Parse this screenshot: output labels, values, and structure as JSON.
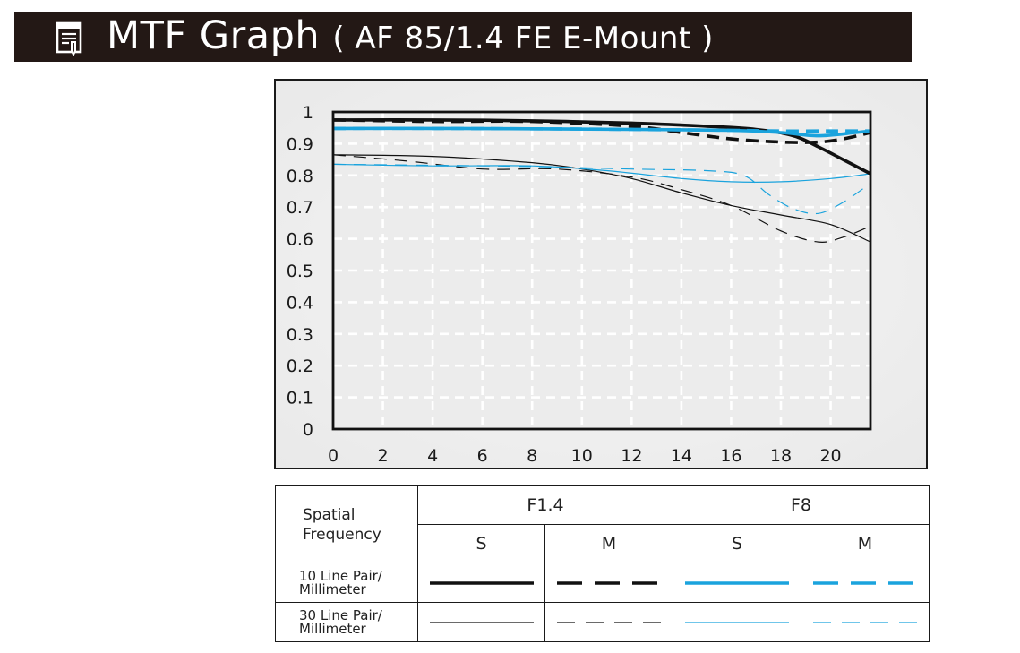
{
  "header": {
    "title": "MTF Graph",
    "subtitle": "( AF 85/1.4 FE E-Mount )",
    "icon": "document-pen-icon"
  },
  "chart_data": {
    "type": "line",
    "title": "",
    "xlabel": "",
    "ylabel": "",
    "xlim": [
      0,
      21.6
    ],
    "ylim": [
      0,
      1
    ],
    "x_ticks": [
      "0",
      "2",
      "4",
      "6",
      "8",
      "10",
      "12",
      "14",
      "16",
      "18",
      "20"
    ],
    "y_ticks": [
      "0",
      "0.1",
      "0.2",
      "0.3",
      "0.4",
      "0.5",
      "0.6",
      "0.7",
      "0.8",
      "0.9",
      "1"
    ],
    "grid": true,
    "series": [
      {
        "aperture": "F1.4",
        "orientation": "S",
        "frequency": "10 Line Pair/ Millimeter",
        "color": "#111111",
        "style": "solid",
        "weight": "thick",
        "x": [
          0,
          4,
          8,
          12,
          15,
          17,
          18.5,
          19.5,
          20.5,
          21.6
        ],
        "y": [
          0.975,
          0.975,
          0.972,
          0.965,
          0.955,
          0.945,
          0.925,
          0.89,
          0.85,
          0.805
        ]
      },
      {
        "aperture": "F1.4",
        "orientation": "M",
        "frequency": "10 Line Pair/ Millimeter",
        "color": "#111111",
        "style": "dashed",
        "weight": "thick",
        "x": [
          0,
          4,
          8,
          12,
          14,
          16,
          18,
          19.5,
          20.5,
          21.6
        ],
        "y": [
          0.975,
          0.97,
          0.97,
          0.955,
          0.935,
          0.915,
          0.905,
          0.905,
          0.915,
          0.935
        ]
      },
      {
        "aperture": "F8",
        "orientation": "S",
        "frequency": "10 Line Pair/ Millimeter",
        "color": "#1aa3dd",
        "style": "solid",
        "weight": "thick",
        "x": [
          0,
          4,
          8,
          12,
          16,
          18,
          19.5,
          21,
          21.6
        ],
        "y": [
          0.948,
          0.948,
          0.947,
          0.945,
          0.942,
          0.935,
          0.925,
          0.935,
          0.94
        ]
      },
      {
        "aperture": "F8",
        "orientation": "M",
        "frequency": "10 Line Pair/ Millimeter",
        "color": "#1aa3dd",
        "style": "dashed",
        "weight": "thick",
        "x": [
          0,
          4,
          8,
          12,
          16,
          18,
          20,
          21.6
        ],
        "y": [
          0.948,
          0.948,
          0.947,
          0.945,
          0.942,
          0.94,
          0.94,
          0.94
        ]
      },
      {
        "aperture": "F1.4",
        "orientation": "S",
        "frequency": "30 Line Pair/ Millimeter",
        "color": "#111111",
        "style": "solid",
        "weight": "thin",
        "x": [
          0,
          4,
          8,
          10,
          12,
          14,
          16,
          18,
          20,
          21.6
        ],
        "y": [
          0.865,
          0.86,
          0.84,
          0.82,
          0.79,
          0.745,
          0.705,
          0.675,
          0.645,
          0.59
        ]
      },
      {
        "aperture": "F1.4",
        "orientation": "M",
        "frequency": "30 Line Pair/ Millimeter",
        "color": "#111111",
        "style": "dashed",
        "weight": "thin",
        "x": [
          0,
          3,
          6,
          9,
          12,
          14,
          16,
          18,
          19.5,
          20.5,
          21.6
        ],
        "y": [
          0.865,
          0.845,
          0.82,
          0.82,
          0.795,
          0.755,
          0.705,
          0.625,
          0.59,
          0.605,
          0.64
        ]
      },
      {
        "aperture": "F8",
        "orientation": "S",
        "frequency": "30 Line Pair/ Millimeter",
        "color": "#1aa3dd",
        "style": "solid",
        "weight": "thin",
        "x": [
          0,
          4,
          8,
          11,
          14,
          16,
          18,
          20,
          21.6
        ],
        "y": [
          0.835,
          0.83,
          0.83,
          0.815,
          0.79,
          0.78,
          0.78,
          0.79,
          0.805
        ]
      },
      {
        "aperture": "F8",
        "orientation": "M",
        "frequency": "30 Line Pair/ Millimeter",
        "color": "#1aa3dd",
        "style": "dashed",
        "weight": "thin",
        "x": [
          0,
          4,
          8,
          12,
          15,
          16.5,
          17.5,
          18.5,
          19.5,
          20.5,
          21.6
        ],
        "y": [
          0.835,
          0.832,
          0.828,
          0.82,
          0.815,
          0.8,
          0.74,
          0.695,
          0.68,
          0.715,
          0.775
        ]
      }
    ]
  },
  "legend_table": {
    "spatial_label_line1": "Spatial",
    "spatial_label_line2": "Frequency",
    "apertures": [
      "F1.4",
      "F8"
    ],
    "orientations": [
      "S",
      "M",
      "S",
      "M"
    ],
    "rows": [
      {
        "label_line1": "10 Line Pair/",
        "label_line2": "Millimeter"
      },
      {
        "label_line1": "30 Line Pair/",
        "label_line2": "Millimeter"
      }
    ]
  }
}
